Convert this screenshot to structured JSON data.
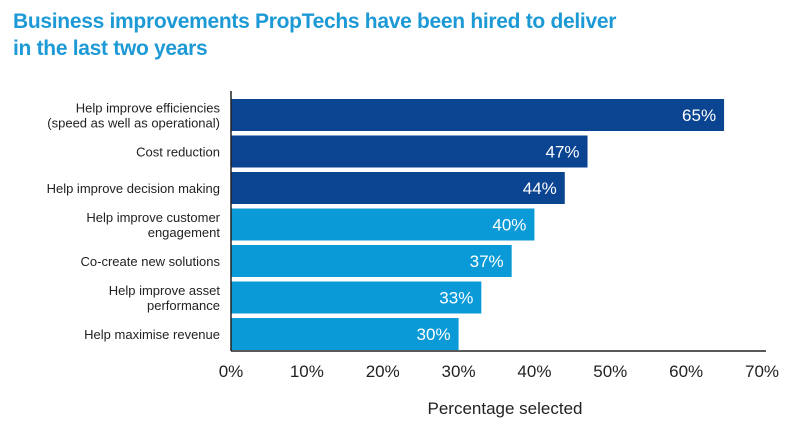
{
  "chart_data": {
    "type": "bar",
    "orientation": "horizontal",
    "title": "Business improvements PropTechs have been hired to deliver in the last two years",
    "title_lines": [
      "Business improvements PropTechs have been hired to deliver",
      "in the last two years"
    ],
    "categories": [
      [
        "Help improve efficiencies",
        "(speed as well as operational)"
      ],
      [
        "Cost reduction"
      ],
      [
        "Help improve decision making"
      ],
      [
        "Help improve customer",
        "engagement"
      ],
      [
        "Co-create new solutions"
      ],
      [
        "Help improve asset",
        "performance"
      ],
      [
        "Help maximise revenue"
      ]
    ],
    "values": [
      65,
      47,
      44,
      40,
      37,
      33,
      30
    ],
    "data_labels": [
      "65%",
      "47%",
      "44%",
      "40%",
      "37%",
      "33%",
      "30%"
    ],
    "bar_colors": [
      "#0b4592",
      "#0b4592",
      "#0b4592",
      "#0a9ad8",
      "#0a9ad8",
      "#0a9ad8",
      "#0a9ad8"
    ],
    "xlabel": "Percentage selected",
    "ylabel": "",
    "xlim": [
      0,
      70
    ],
    "xticks": [
      "0%",
      "10%",
      "20%",
      "30%",
      "40%",
      "50%",
      "60%",
      "70%"
    ],
    "grid": false,
    "legend": "none"
  }
}
